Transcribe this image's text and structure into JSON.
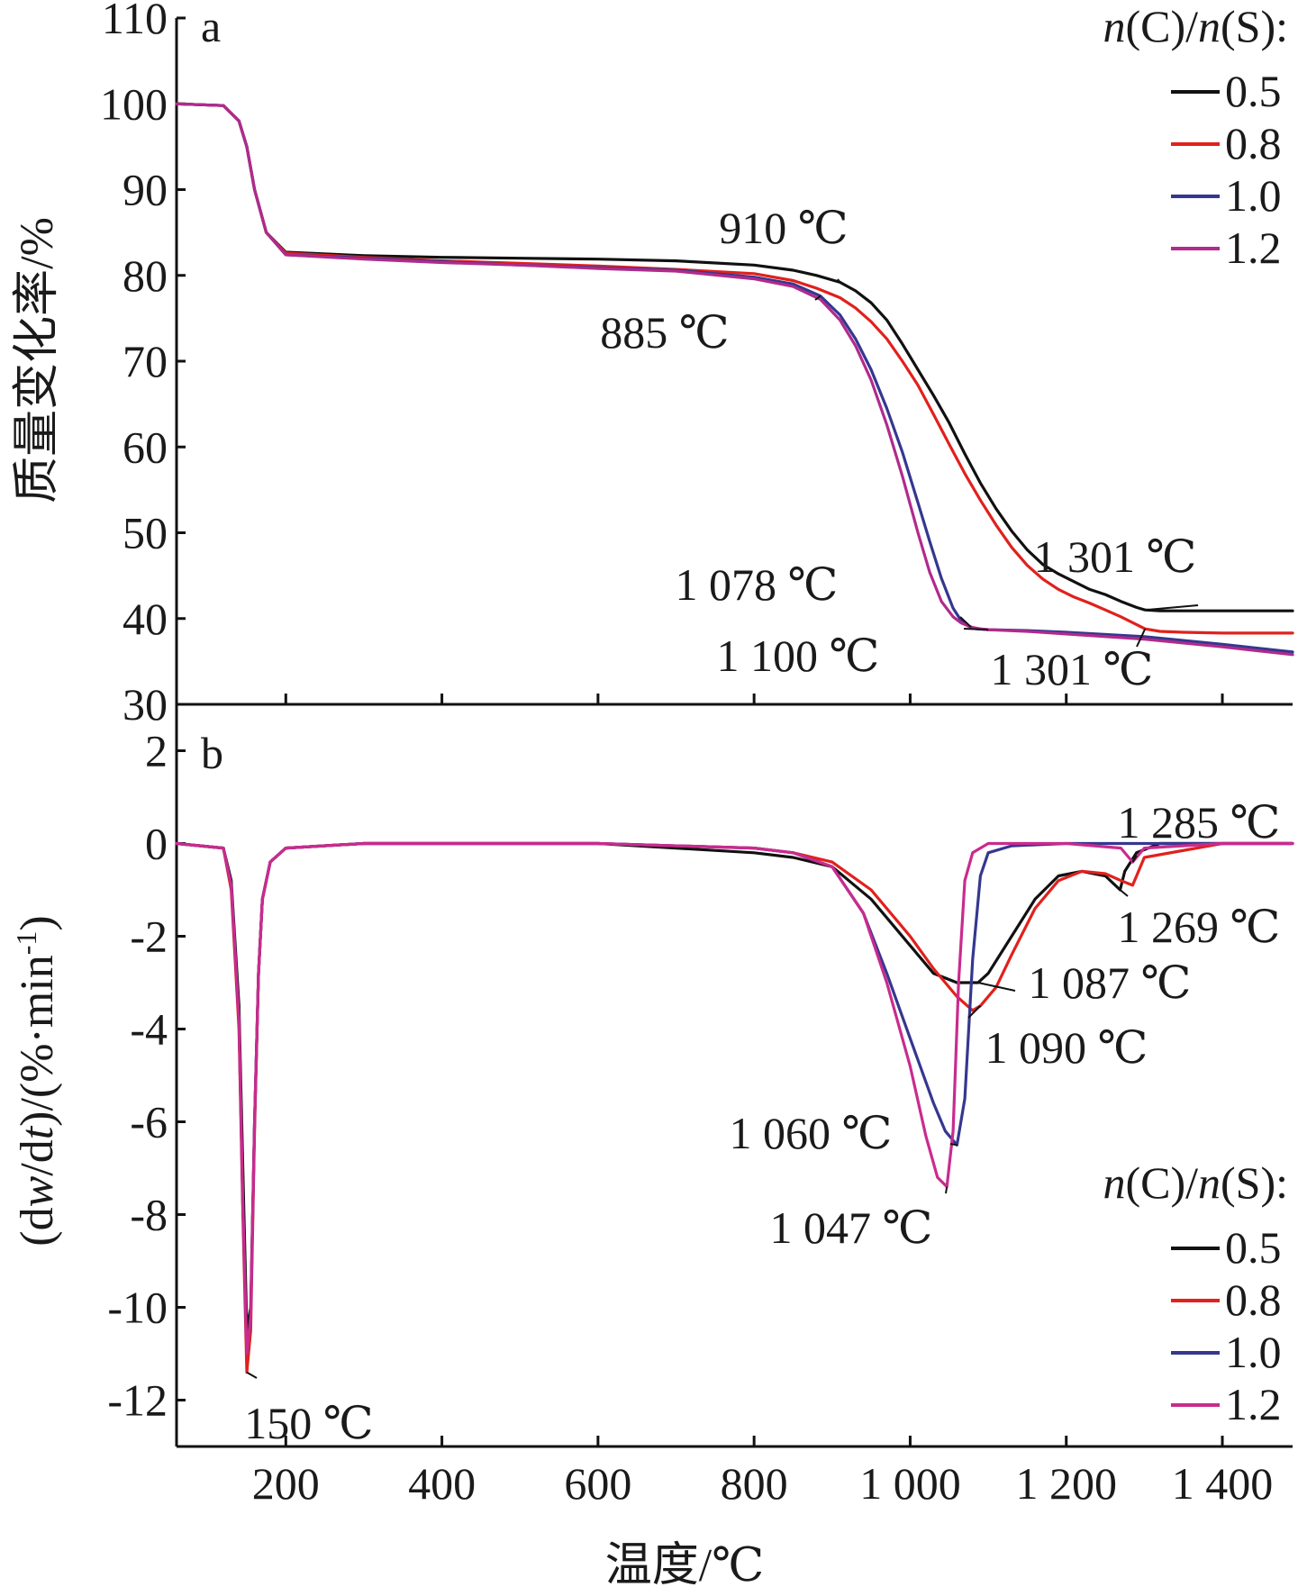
{
  "chart_data": [
    {
      "type": "line",
      "panel_label": "a",
      "xlabel": "温度/℃",
      "ylabel": "质量变化率/%",
      "xlim": [
        60,
        1490
      ],
      "ylim": [
        30,
        110
      ],
      "x_ticks": [
        200,
        400,
        600,
        800,
        1000,
        1200,
        1400
      ],
      "x_tick_labels": [
        "200",
        "400",
        "600",
        "800",
        "1 000",
        "1 200",
        "1 400"
      ],
      "y_ticks": [
        30,
        40,
        50,
        60,
        70,
        80,
        90,
        100,
        110
      ],
      "y_tick_labels": [
        "30",
        "40",
        "50",
        "60",
        "70",
        "80",
        "90",
        "100",
        "110"
      ],
      "grid": false,
      "legend": {
        "title_parts": [
          "n",
          "(C)/",
          "n",
          "(S):"
        ],
        "placement": "top-right",
        "entries": [
          "0.5",
          "0.8",
          "1.0",
          "1.2"
        ]
      },
      "series": [
        {
          "name": "0.5",
          "color": "#111111",
          "x": [
            60,
            120,
            140,
            150,
            160,
            175,
            200,
            300,
            400,
            500,
            600,
            700,
            800,
            850,
            880,
            910,
            930,
            950,
            970,
            990,
            1010,
            1030,
            1050,
            1070,
            1090,
            1110,
            1130,
            1150,
            1170,
            1190,
            1210,
            1230,
            1250,
            1270,
            1290,
            1301,
            1320,
            1350,
            1400,
            1450,
            1490
          ],
          "y": [
            100,
            99.8,
            98,
            95,
            90,
            85,
            82.7,
            82.3,
            82.1,
            82.0,
            81.9,
            81.7,
            81.2,
            80.6,
            80.0,
            79.2,
            78.2,
            76.8,
            74.8,
            72.0,
            69.0,
            66.0,
            62.8,
            59.2,
            55.8,
            52.8,
            50.2,
            48.0,
            46.3,
            45.2,
            44.3,
            43.4,
            42.8,
            42.0,
            41.3,
            41.0,
            40.9,
            40.9,
            40.9,
            40.9,
            40.9
          ]
        },
        {
          "name": "0.8",
          "color": "#e0211d",
          "x": [
            60,
            120,
            140,
            150,
            160,
            175,
            200,
            300,
            400,
            500,
            600,
            700,
            800,
            850,
            880,
            910,
            930,
            950,
            970,
            990,
            1010,
            1030,
            1050,
            1070,
            1090,
            1110,
            1130,
            1150,
            1170,
            1190,
            1210,
            1230,
            1250,
            1270,
            1290,
            1301,
            1320,
            1350,
            1400,
            1450,
            1490
          ],
          "y": [
            100,
            99.8,
            98,
            95,
            90,
            85,
            82.6,
            82.1,
            81.7,
            81.4,
            81.1,
            80.7,
            80.2,
            79.4,
            78.5,
            77.4,
            76.2,
            74.6,
            72.6,
            70.0,
            67.2,
            63.8,
            60.3,
            56.9,
            53.8,
            50.9,
            48.3,
            46.2,
            44.6,
            43.4,
            42.5,
            41.8,
            41.0,
            40.2,
            39.3,
            38.8,
            38.5,
            38.4,
            38.3,
            38.3,
            38.3
          ]
        },
        {
          "name": "1.0",
          "color": "#35378f",
          "x": [
            60,
            120,
            140,
            150,
            160,
            175,
            200,
            300,
            400,
            500,
            600,
            700,
            800,
            850,
            885,
            910,
            930,
            950,
            970,
            990,
            1010,
            1025,
            1040,
            1055,
            1065,
            1075,
            1085,
            1100,
            1150,
            1200,
            1300,
            1400,
            1490
          ],
          "y": [
            100,
            99.8,
            98,
            95,
            90,
            85,
            82.4,
            82.0,
            81.6,
            81.2,
            80.9,
            80.6,
            79.8,
            79.0,
            77.6,
            75.4,
            72.6,
            69.0,
            64.5,
            59.4,
            53.5,
            49.0,
            44.7,
            41.2,
            39.8,
            39.1,
            38.8,
            38.7,
            38.6,
            38.4,
            37.9,
            37.0,
            36.1
          ]
        },
        {
          "name": "1.2",
          "color": "#b12a8c",
          "x": [
            60,
            120,
            140,
            150,
            160,
            175,
            200,
            300,
            400,
            500,
            600,
            700,
            800,
            850,
            885,
            910,
            930,
            950,
            970,
            990,
            1010,
            1025,
            1040,
            1055,
            1065,
            1078,
            1090,
            1100,
            1150,
            1200,
            1300,
            1400,
            1490
          ],
          "y": [
            100,
            99.8,
            98,
            95,
            90,
            85,
            82.4,
            81.9,
            81.5,
            81.2,
            80.8,
            80.5,
            79.6,
            78.7,
            77.2,
            74.8,
            71.8,
            67.8,
            62.6,
            56.6,
            50.0,
            45.4,
            42.0,
            40.2,
            39.5,
            39.0,
            38.8,
            38.7,
            38.5,
            38.2,
            37.6,
            36.7,
            35.8
          ]
        }
      ],
      "annotations": [
        {
          "text": "910 ℃",
          "x": 910,
          "y": 79.2
        },
        {
          "text": "885 ℃",
          "x": 885,
          "y": 77.6
        },
        {
          "text": "1 078 ℃",
          "x": 1078,
          "y": 39.0
        },
        {
          "text": "1 100 ℃",
          "x": 1100,
          "y": 38.7
        },
        {
          "text": "1 301 ℃",
          "x": 1301,
          "y": 41.0
        },
        {
          "text": "1 301 ℃",
          "x": 1301,
          "y": 38.8
        }
      ]
    },
    {
      "type": "line",
      "panel_label": "b",
      "xlabel": "温度/℃",
      "ylabel_parts": [
        "(d",
        "w",
        "/d",
        "t",
        ")/(%·min",
        "-1",
        ")"
      ],
      "xlim": [
        60,
        1490
      ],
      "ylim": [
        -13,
        3
      ],
      "x_ticks": [
        200,
        400,
        600,
        800,
        1000,
        1200,
        1400
      ],
      "x_tick_labels": [
        "200",
        "400",
        "600",
        "800",
        "1 000",
        "1 200",
        "1 400"
      ],
      "y_ticks": [
        -12,
        -10,
        -8,
        -6,
        -4,
        -2,
        0,
        2
      ],
      "y_tick_labels": [
        "-12",
        "-10",
        "-8",
        "-6",
        "-4",
        "-2",
        "0",
        "2"
      ],
      "grid": false,
      "legend": {
        "title_parts": [
          "n",
          "(C)/",
          "n",
          "(S):"
        ],
        "placement": "bottom-right",
        "entries": [
          "0.5",
          "0.8",
          "1.0",
          "1.2"
        ]
      },
      "series": [
        {
          "name": "0.5",
          "color": "#111111",
          "x": [
            60,
            120,
            130,
            140,
            145,
            150,
            155,
            160,
            165,
            170,
            180,
            200,
            300,
            400,
            600,
            800,
            850,
            900,
            950,
            1000,
            1030,
            1060,
            1087,
            1100,
            1130,
            1160,
            1190,
            1220,
            1250,
            1269,
            1275,
            1290,
            1320,
            1400,
            1490
          ],
          "y": [
            0,
            -0.1,
            -0.8,
            -3.5,
            -7.0,
            -10.5,
            -10.0,
            -6.0,
            -2.8,
            -1.2,
            -0.4,
            -0.1,
            0,
            0,
            0,
            -0.2,
            -0.3,
            -0.5,
            -1.2,
            -2.2,
            -2.8,
            -3.0,
            -3.0,
            -2.8,
            -2.0,
            -1.2,
            -0.7,
            -0.6,
            -0.7,
            -1.0,
            -0.6,
            -0.2,
            0,
            0,
            0
          ]
        },
        {
          "name": "0.8",
          "color": "#e0211d",
          "x": [
            60,
            120,
            130,
            140,
            145,
            150,
            155,
            160,
            165,
            170,
            180,
            200,
            300,
            400,
            600,
            800,
            850,
            900,
            950,
            1000,
            1030,
            1060,
            1080,
            1090,
            1110,
            1130,
            1160,
            1190,
            1220,
            1250,
            1270,
            1285,
            1300,
            1400,
            1490
          ],
          "y": [
            0,
            -0.1,
            -1.0,
            -4.0,
            -8.0,
            -11.4,
            -10.5,
            -6.2,
            -2.8,
            -1.2,
            -0.4,
            -0.1,
            0,
            0,
            0,
            -0.1,
            -0.2,
            -0.4,
            -1.0,
            -2.0,
            -2.7,
            -3.3,
            -3.6,
            -3.5,
            -3.1,
            -2.4,
            -1.4,
            -0.8,
            -0.6,
            -0.65,
            -0.8,
            -0.9,
            -0.3,
            0,
            0
          ]
        },
        {
          "name": "1.0",
          "color": "#35378f",
          "x": [
            60,
            120,
            130,
            140,
            145,
            150,
            155,
            160,
            165,
            170,
            180,
            200,
            300,
            400,
            600,
            800,
            850,
            900,
            940,
            970,
            1000,
            1030,
            1045,
            1060,
            1070,
            1080,
            1090,
            1100,
            1130,
            1200,
            1400,
            1490
          ],
          "y": [
            0,
            -0.1,
            -0.9,
            -3.8,
            -7.8,
            -11.0,
            -10.2,
            -6.0,
            -2.8,
            -1.2,
            -0.4,
            -0.1,
            0,
            0,
            0,
            -0.1,
            -0.2,
            -0.5,
            -1.5,
            -2.8,
            -4.2,
            -5.6,
            -6.2,
            -6.5,
            -5.5,
            -2.5,
            -0.7,
            -0.2,
            -0.05,
            0,
            0,
            0
          ]
        },
        {
          "name": "1.2",
          "color": "#c92b8e",
          "x": [
            60,
            120,
            130,
            140,
            145,
            150,
            155,
            160,
            165,
            170,
            180,
            200,
            300,
            400,
            600,
            800,
            850,
            900,
            940,
            970,
            1000,
            1020,
            1035,
            1047,
            1055,
            1062,
            1070,
            1080,
            1100,
            1200,
            1270,
            1285,
            1300,
            1400,
            1490
          ],
          "y": [
            0,
            -0.1,
            -0.9,
            -3.8,
            -7.8,
            -11.0,
            -10.2,
            -6.0,
            -2.8,
            -1.2,
            -0.4,
            -0.1,
            0,
            0,
            0,
            -0.1,
            -0.2,
            -0.5,
            -1.5,
            -3.0,
            -4.8,
            -6.3,
            -7.2,
            -7.4,
            -6.2,
            -3.0,
            -0.8,
            -0.2,
            0,
            0,
            -0.1,
            -0.4,
            -0.1,
            0,
            0
          ]
        }
      ],
      "annotations": [
        {
          "text": "150 ℃",
          "x": 150,
          "y": -11.4
        },
        {
          "text": "1 060 ℃",
          "x": 1060,
          "y": -6.5
        },
        {
          "text": "1 047 ℃",
          "x": 1047,
          "y": -7.4
        },
        {
          "text": "1 087 ℃",
          "x": 1087,
          "y": -3.0
        },
        {
          "text": "1 090 ℃",
          "x": 1090,
          "y": -3.5
        },
        {
          "text": "1 285 ℃",
          "x": 1285,
          "y": -0.4
        },
        {
          "text": "1 269 ℃",
          "x": 1269,
          "y": -1.0
        }
      ]
    }
  ]
}
